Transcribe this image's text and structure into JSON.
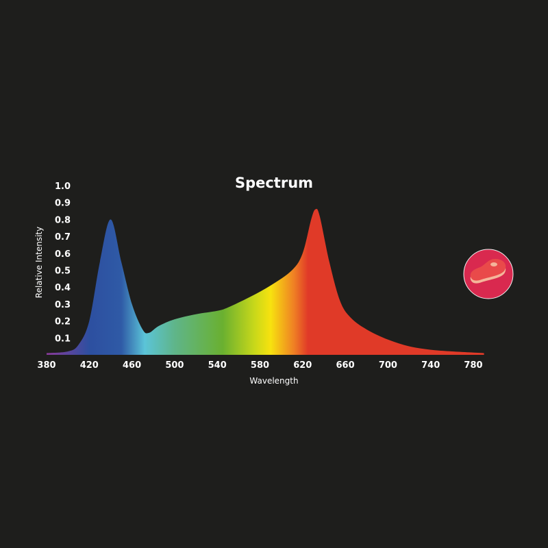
{
  "chart_data": {
    "type": "area",
    "title": "Spectrum",
    "xlabel": "Wavelength",
    "ylabel": "Relative Intensity",
    "xlim": [
      380,
      790
    ],
    "ylim": [
      0,
      1.0
    ],
    "xticks": [
      "380",
      "420",
      "460",
      "500",
      "540",
      "580",
      "620",
      "660",
      "700",
      "740",
      "780"
    ],
    "yticks": [
      "0.1",
      "0.2",
      "0.3",
      "0.4",
      "0.5",
      "0.6",
      "0.7",
      "0.8",
      "0.9",
      "1.0"
    ],
    "grid": false,
    "fill": "wavelength color gradient",
    "x": [
      380,
      400,
      410,
      420,
      430,
      440,
      450,
      460,
      470,
      476,
      485,
      500,
      520,
      540,
      550,
      570,
      590,
      610,
      620,
      628,
      632,
      636,
      645,
      655,
      665,
      680,
      700,
      720,
      740,
      760,
      790
    ],
    "y": [
      0.01,
      0.02,
      0.06,
      0.2,
      0.55,
      0.8,
      0.55,
      0.3,
      0.15,
      0.13,
      0.17,
      0.21,
      0.24,
      0.26,
      0.28,
      0.34,
      0.41,
      0.5,
      0.6,
      0.8,
      0.86,
      0.82,
      0.55,
      0.32,
      0.22,
      0.15,
      0.09,
      0.05,
      0.03,
      0.02,
      0.01
    ],
    "gradient_stops": [
      {
        "nm": 380,
        "color": "#8a3a9a"
      },
      {
        "nm": 420,
        "color": "#2d4fa0"
      },
      {
        "nm": 450,
        "color": "#2f5aa6"
      },
      {
        "nm": 472,
        "color": "#5bc4d8"
      },
      {
        "nm": 500,
        "color": "#5fb58a"
      },
      {
        "nm": 545,
        "color": "#6ab030"
      },
      {
        "nm": 575,
        "color": "#c8d81a"
      },
      {
        "nm": 590,
        "color": "#f7e20f"
      },
      {
        "nm": 612,
        "color": "#ef7f24"
      },
      {
        "nm": 625,
        "color": "#e03a28"
      },
      {
        "nm": 790,
        "color": "#e03a28"
      }
    ]
  },
  "badge": {
    "icon": "steak-icon",
    "bg": "#d9294f"
  }
}
